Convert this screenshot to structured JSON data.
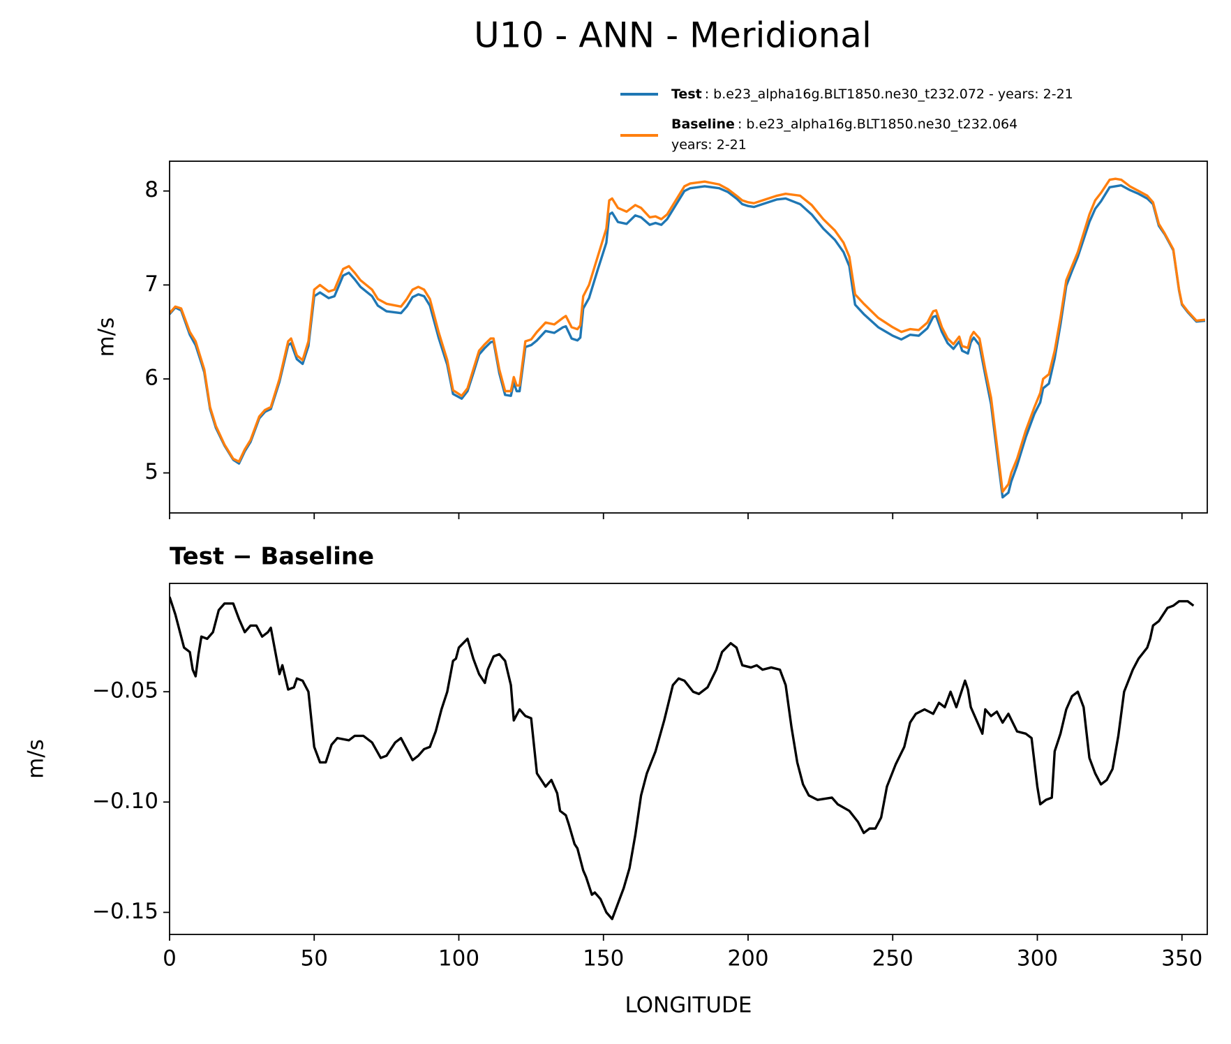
{
  "chart_data": [
    {
      "type": "line",
      "title": "U10 - ANN - Meridional",
      "ylabel": "m/s",
      "xlim": [
        0,
        358.75
      ],
      "xticks": [
        0,
        50,
        100,
        150,
        200,
        250,
        300,
        350
      ],
      "ylim": [
        4.574,
        8.317
      ],
      "yticks": [
        5,
        6,
        7,
        8
      ],
      "x": [
        0,
        2,
        4,
        7,
        9,
        11,
        12,
        14,
        16,
        19,
        22,
        24,
        26,
        28,
        31,
        33,
        35,
        38,
        41,
        42,
        44,
        46,
        48,
        50,
        52,
        55,
        57,
        60,
        62,
        64,
        66,
        68,
        70,
        72,
        75,
        80,
        82,
        84,
        86,
        88,
        90,
        93,
        96,
        98,
        101,
        103,
        105,
        107,
        109,
        111,
        112,
        114,
        116,
        118,
        119,
        120,
        121,
        123,
        125,
        127,
        130,
        133,
        136,
        137,
        139,
        141,
        142,
        143,
        145,
        148,
        151,
        152,
        153,
        155,
        158,
        161,
        163,
        166,
        168,
        170,
        172,
        175,
        178,
        180,
        185,
        190,
        193,
        196,
        198,
        200,
        202,
        205,
        210,
        213,
        218,
        222,
        226,
        230,
        233,
        235,
        236,
        237,
        240,
        245,
        250,
        253,
        256,
        259,
        262,
        264,
        265,
        267,
        269,
        271,
        273,
        274,
        276,
        277,
        278,
        280,
        282,
        284,
        286,
        288,
        290,
        291,
        293,
        296,
        299,
        301,
        302,
        304,
        306,
        308,
        310,
        312,
        314,
        318,
        320,
        322,
        325,
        327,
        329,
        332,
        335,
        338,
        340,
        342,
        344,
        347,
        349,
        350,
        352,
        355,
        358
      ],
      "series": [
        {
          "name": "Test",
          "description": [
            ": b.e23_alpha16g.BLT1850.ne30_t232.072 - years: 2-21"
          ],
          "color": "#1f77b4",
          "values": [
            6.69,
            6.76,
            6.73,
            6.47,
            6.36,
            6.17,
            6.07,
            5.68,
            5.48,
            5.29,
            5.14,
            5.1,
            5.23,
            5.33,
            5.58,
            5.65,
            5.68,
            5.97,
            6.36,
            6.38,
            6.21,
            6.16,
            6.35,
            6.88,
            6.92,
            6.86,
            6.88,
            7.1,
            7.13,
            7.06,
            6.98,
            6.93,
            6.88,
            6.78,
            6.72,
            6.7,
            6.77,
            6.87,
            6.9,
            6.88,
            6.78,
            6.44,
            6.15,
            5.84,
            5.79,
            5.87,
            6.06,
            6.26,
            6.33,
            6.39,
            6.4,
            6.06,
            5.83,
            5.82,
            5.96,
            5.87,
            5.87,
            6.34,
            6.36,
            6.41,
            6.51,
            6.49,
            6.55,
            6.56,
            6.43,
            6.41,
            6.44,
            6.75,
            6.86,
            7.16,
            7.45,
            7.75,
            7.77,
            7.67,
            7.65,
            7.74,
            7.72,
            7.64,
            7.66,
            7.64,
            7.7,
            7.85,
            8.0,
            8.03,
            8.05,
            8.03,
            7.99,
            7.92,
            7.86,
            7.84,
            7.83,
            7.86,
            7.91,
            7.92,
            7.86,
            7.75,
            7.6,
            7.48,
            7.35,
            7.2,
            6.99,
            6.79,
            6.69,
            6.55,
            6.46,
            6.42,
            6.47,
            6.46,
            6.54,
            6.66,
            6.67,
            6.5,
            6.38,
            6.32,
            6.4,
            6.3,
            6.27,
            6.39,
            6.44,
            6.36,
            6.04,
            5.73,
            5.23,
            4.74,
            4.79,
            4.91,
            5.08,
            5.38,
            5.63,
            5.75,
            5.9,
            5.95,
            6.22,
            6.58,
            6.99,
            7.15,
            7.3,
            7.67,
            7.81,
            7.89,
            8.04,
            8.05,
            8.06,
            8.01,
            7.97,
            7.92,
            7.86,
            7.63,
            7.54,
            7.37,
            6.94,
            6.79,
            6.71,
            6.61,
            6.62
          ]
        },
        {
          "name": "Baseline",
          "description": [
            ": b.e23_alpha16g.BLT1850.ne30_t232.064",
            "years: 2-21"
          ],
          "color": "#ff7f0e",
          "values": [
            6.7,
            6.77,
            6.75,
            6.5,
            6.4,
            6.2,
            6.1,
            5.7,
            5.5,
            5.3,
            5.15,
            5.12,
            5.25,
            5.35,
            5.6,
            5.67,
            5.7,
            6.0,
            6.4,
            6.43,
            6.25,
            6.2,
            6.4,
            6.95,
            7.0,
            6.93,
            6.95,
            7.17,
            7.2,
            7.13,
            7.05,
            7.0,
            6.95,
            6.85,
            6.8,
            6.77,
            6.85,
            6.95,
            6.98,
            6.95,
            6.85,
            6.5,
            6.2,
            5.88,
            5.82,
            5.9,
            6.1,
            6.3,
            6.37,
            6.43,
            6.43,
            6.1,
            5.87,
            5.87,
            6.02,
            5.93,
            5.93,
            6.4,
            6.42,
            6.5,
            6.6,
            6.58,
            6.65,
            6.67,
            6.55,
            6.53,
            6.57,
            6.88,
            7.0,
            7.3,
            7.6,
            7.9,
            7.92,
            7.82,
            7.78,
            7.85,
            7.82,
            7.72,
            7.73,
            7.7,
            7.75,
            7.9,
            8.05,
            8.08,
            8.1,
            8.07,
            8.02,
            7.95,
            7.9,
            7.88,
            7.87,
            7.9,
            7.95,
            7.97,
            7.95,
            7.85,
            7.7,
            7.58,
            7.45,
            7.3,
            7.1,
            6.9,
            6.8,
            6.65,
            6.55,
            6.5,
            6.53,
            6.52,
            6.6,
            6.72,
            6.73,
            6.55,
            6.43,
            6.37,
            6.45,
            6.35,
            6.33,
            6.45,
            6.5,
            6.43,
            6.1,
            5.8,
            5.3,
            4.8,
            4.88,
            5.0,
            5.15,
            5.45,
            5.7,
            5.85,
            6.0,
            6.05,
            6.3,
            6.65,
            7.05,
            7.2,
            7.35,
            7.75,
            7.9,
            7.98,
            8.12,
            8.13,
            8.12,
            8.05,
            8.0,
            7.95,
            7.88,
            7.65,
            7.55,
            7.38,
            6.95,
            6.8,
            6.72,
            6.62,
            6.63
          ]
        }
      ]
    },
    {
      "type": "line",
      "title": "Test − Baseline",
      "ylabel": "m/s",
      "xlabel": "LONGITUDE",
      "xlim": [
        0,
        358.75
      ],
      "xticks": [
        0,
        50,
        100,
        150,
        200,
        250,
        300,
        350
      ],
      "ylim": [
        -0.16,
        -0.0009
      ],
      "yticks": [
        {
          "value": -0.05,
          "label": "−0.05"
        },
        {
          "value": -0.1,
          "label": "−0.10"
        },
        {
          "value": -0.15,
          "label": "−0.15"
        }
      ],
      "x": [
        0,
        2,
        4,
        5,
        7,
        8,
        9,
        10,
        11,
        13,
        15,
        17,
        19,
        22,
        24,
        26,
        28,
        30,
        32,
        34,
        35,
        37,
        38,
        39,
        41,
        43,
        44,
        46,
        48,
        50,
        52,
        54,
        56,
        58,
        62,
        64,
        67,
        70,
        73,
        75,
        78,
        80,
        82,
        84,
        86,
        88,
        90,
        92,
        94,
        96,
        98,
        99,
        100,
        103,
        105,
        107,
        109,
        110,
        112,
        114,
        116,
        118,
        119,
        121,
        123,
        125,
        127,
        129,
        130,
        132,
        134,
        135,
        137,
        138,
        140,
        141,
        143,
        144,
        146,
        147,
        149,
        151,
        153,
        155,
        157,
        159,
        161,
        163,
        165,
        168,
        171,
        174,
        176,
        178,
        181,
        183,
        186,
        189,
        191,
        194,
        196,
        198,
        201,
        203,
        205,
        208,
        211,
        213,
        215,
        217,
        219,
        221,
        224,
        229,
        231,
        235,
        238,
        240,
        242,
        244,
        246,
        248,
        251,
        254,
        256,
        258,
        261,
        264,
        266,
        268,
        270,
        272,
        274,
        275,
        276,
        277,
        279,
        281,
        282,
        284,
        286,
        288,
        290,
        293,
        296,
        298,
        300,
        301,
        303,
        305,
        306,
        308,
        310,
        312,
        314,
        316,
        318,
        320,
        322,
        324,
        326,
        328,
        330,
        333,
        335,
        338,
        339,
        340,
        342,
        345,
        347,
        349,
        352,
        354
      ],
      "series": [
        {
          "color": "#000000",
          "values": [
            -0.007,
            -0.015,
            -0.025,
            -0.03,
            -0.032,
            -0.04,
            -0.043,
            -0.033,
            -0.025,
            -0.026,
            -0.023,
            -0.013,
            -0.01,
            -0.01,
            -0.017,
            -0.023,
            -0.02,
            -0.02,
            -0.025,
            -0.023,
            -0.021,
            -0.035,
            -0.042,
            -0.038,
            -0.049,
            -0.048,
            -0.044,
            -0.045,
            -0.05,
            -0.075,
            -0.082,
            -0.082,
            -0.074,
            -0.071,
            -0.072,
            -0.07,
            -0.07,
            -0.073,
            -0.08,
            -0.079,
            -0.073,
            -0.071,
            -0.076,
            -0.081,
            -0.079,
            -0.076,
            -0.075,
            -0.068,
            -0.058,
            -0.05,
            -0.036,
            -0.035,
            -0.03,
            -0.026,
            -0.035,
            -0.042,
            -0.046,
            -0.04,
            -0.034,
            -0.033,
            -0.036,
            -0.047,
            -0.063,
            -0.058,
            -0.061,
            -0.062,
            -0.087,
            -0.091,
            -0.093,
            -0.09,
            -0.096,
            -0.104,
            -0.106,
            -0.11,
            -0.119,
            -0.121,
            -0.131,
            -0.134,
            -0.142,
            -0.141,
            -0.144,
            -0.15,
            -0.153,
            -0.146,
            -0.139,
            -0.13,
            -0.115,
            -0.097,
            -0.087,
            -0.077,
            -0.063,
            -0.047,
            -0.044,
            -0.045,
            -0.05,
            -0.051,
            -0.048,
            -0.04,
            -0.032,
            -0.028,
            -0.03,
            -0.038,
            -0.039,
            -0.038,
            -0.04,
            -0.039,
            -0.04,
            -0.047,
            -0.066,
            -0.082,
            -0.092,
            -0.097,
            -0.099,
            -0.098,
            -0.101,
            -0.104,
            -0.109,
            -0.114,
            -0.112,
            -0.112,
            -0.107,
            -0.093,
            -0.083,
            -0.075,
            -0.064,
            -0.06,
            -0.058,
            -0.06,
            -0.055,
            -0.057,
            -0.05,
            -0.057,
            -0.049,
            -0.045,
            -0.049,
            -0.057,
            -0.063,
            -0.069,
            -0.058,
            -0.061,
            -0.059,
            -0.064,
            -0.06,
            -0.068,
            -0.069,
            -0.071,
            -0.093,
            -0.101,
            -0.099,
            -0.098,
            -0.077,
            -0.069,
            -0.058,
            -0.052,
            -0.05,
            -0.057,
            -0.08,
            -0.087,
            -0.092,
            -0.09,
            -0.085,
            -0.07,
            -0.05,
            -0.04,
            -0.035,
            -0.03,
            -0.026,
            -0.02,
            -0.018,
            -0.012,
            -0.011,
            -0.009,
            -0.009,
            -0.011
          ]
        }
      ]
    }
  ]
}
